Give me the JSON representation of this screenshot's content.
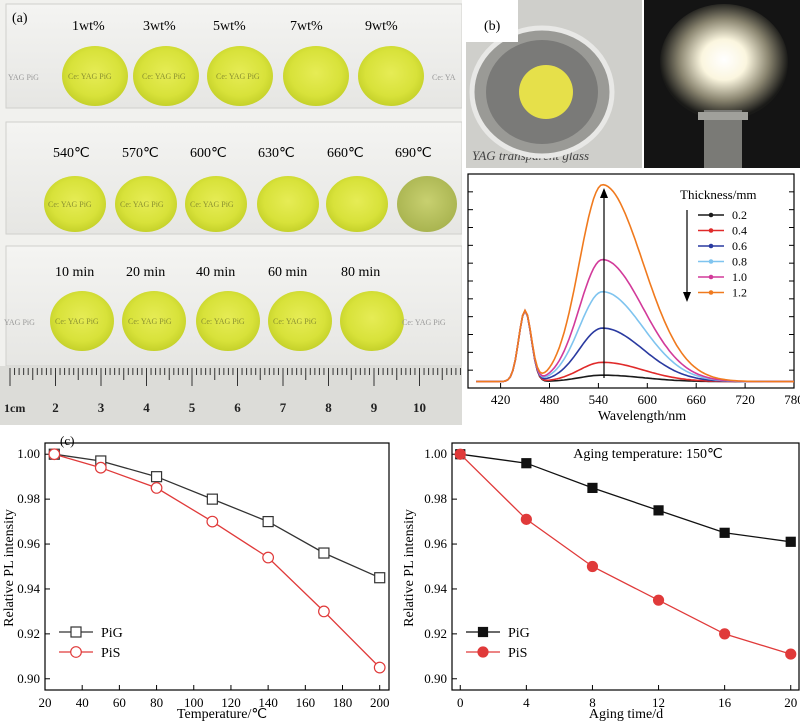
{
  "panel_a": {
    "label": "(a)",
    "rows": [
      {
        "labels": [
          "1wt%",
          "3wt%",
          "5wt%",
          "7wt%",
          "9wt%"
        ]
      },
      {
        "labels": [
          "540℃",
          "570℃",
          "600℃",
          "630℃",
          "660℃",
          "690℃"
        ]
      },
      {
        "labels": [
          "10 min",
          "20 min",
          "40 min",
          "60 min",
          "80 min"
        ]
      }
    ],
    "disc_text": "Ce: YAG PiG",
    "ruler": {
      "unit": "cm",
      "numbers": [
        "2",
        "3",
        "4",
        "5",
        "6",
        "7",
        "8",
        "9",
        "10",
        "1"
      ]
    }
  },
  "panel_b": {
    "label": "(b)",
    "bg_text": "YAG transparent glass",
    "colors": {
      "phosphor": "#e6e04a",
      "glow": "#fffdf0"
    }
  },
  "chart_data": [
    {
      "type": "line",
      "xlabel": "Wavelength/nm",
      "ylabel": "",
      "xlim": [
        380,
        780
      ],
      "x_ticks": [
        420,
        480,
        540,
        600,
        660,
        720,
        780
      ],
      "y_ticks_labeled": false,
      "legend_title": "Thickness/mm",
      "legend_position": "top-right",
      "series": [
        {
          "name": "0.2",
          "color": "#1a1a1a",
          "blue_peak": 0.33,
          "yellow_peak": 0.03
        },
        {
          "name": "0.4",
          "color": "#e02a2a",
          "blue_peak": 0.33,
          "yellow_peak": 0.09
        },
        {
          "name": "0.6",
          "color": "#2a3aa0",
          "blue_peak": 0.33,
          "yellow_peak": 0.25
        },
        {
          "name": "0.8",
          "color": "#7fc4ef",
          "blue_peak": 0.33,
          "yellow_peak": 0.42
        },
        {
          "name": "1.0",
          "color": "#d23a9a",
          "blue_peak": 0.33,
          "yellow_peak": 0.57
        },
        {
          "name": "1.2",
          "color": "#f07a1e",
          "blue_peak": 0.33,
          "yellow_peak": 0.92
        }
      ],
      "blue_peak_x": 450,
      "yellow_peak_x": 545
    },
    {
      "type": "line",
      "panel_label": "(c)",
      "xlabel": "Temperature/℃",
      "ylabel": "Relative PL intensity",
      "xlim": [
        20,
        205
      ],
      "ylim": [
        0.895,
        1.005
      ],
      "x_ticks": [
        20,
        40,
        60,
        80,
        100,
        120,
        140,
        160,
        180,
        200
      ],
      "y_ticks": [
        0.9,
        0.92,
        0.94,
        0.96,
        0.98,
        1.0
      ],
      "y_tick_labels": [
        "0.90",
        "0.92",
        "0.94",
        "0.96",
        "0.98",
        "1.00"
      ],
      "legend_position": "bottom-left",
      "series": [
        {
          "name": "PiG",
          "color": "#333333",
          "marker": "square-open",
          "x": [
            25,
            50,
            80,
            110,
            140,
            170,
            200
          ],
          "y": [
            1.0,
            0.997,
            0.99,
            0.98,
            0.97,
            0.956,
            0.945
          ]
        },
        {
          "name": "PiS",
          "color": "#e03a3a",
          "marker": "circle-open",
          "x": [
            25,
            50,
            80,
            110,
            140,
            170,
            200
          ],
          "y": [
            1.0,
            0.994,
            0.985,
            0.97,
            0.954,
            0.93,
            0.905
          ]
        }
      ]
    },
    {
      "type": "line",
      "annotation": "Aging temperature: 150℃",
      "xlabel": "Aging time/d",
      "ylabel": "Relative PL intensity",
      "xlim": [
        -0.5,
        20.5
      ],
      "ylim": [
        0.895,
        1.005
      ],
      "x_ticks": [
        0,
        4,
        8,
        12,
        16,
        20
      ],
      "y_ticks": [
        0.9,
        0.92,
        0.94,
        0.96,
        0.98,
        1.0
      ],
      "y_tick_labels": [
        "0.90",
        "0.92",
        "0.94",
        "0.96",
        "0.98",
        "1.00"
      ],
      "legend_position": "bottom-left",
      "series": [
        {
          "name": "PiG",
          "color": "#111111",
          "marker": "square-filled",
          "x": [
            0,
            4,
            8,
            12,
            16,
            20
          ],
          "y": [
            1.0,
            0.996,
            0.985,
            0.975,
            0.965,
            0.961
          ]
        },
        {
          "name": "PiS",
          "color": "#e03a3a",
          "marker": "circle-filled",
          "x": [
            0,
            4,
            8,
            12,
            16,
            20
          ],
          "y": [
            1.0,
            0.971,
            0.95,
            0.935,
            0.92,
            0.911
          ]
        }
      ]
    }
  ]
}
